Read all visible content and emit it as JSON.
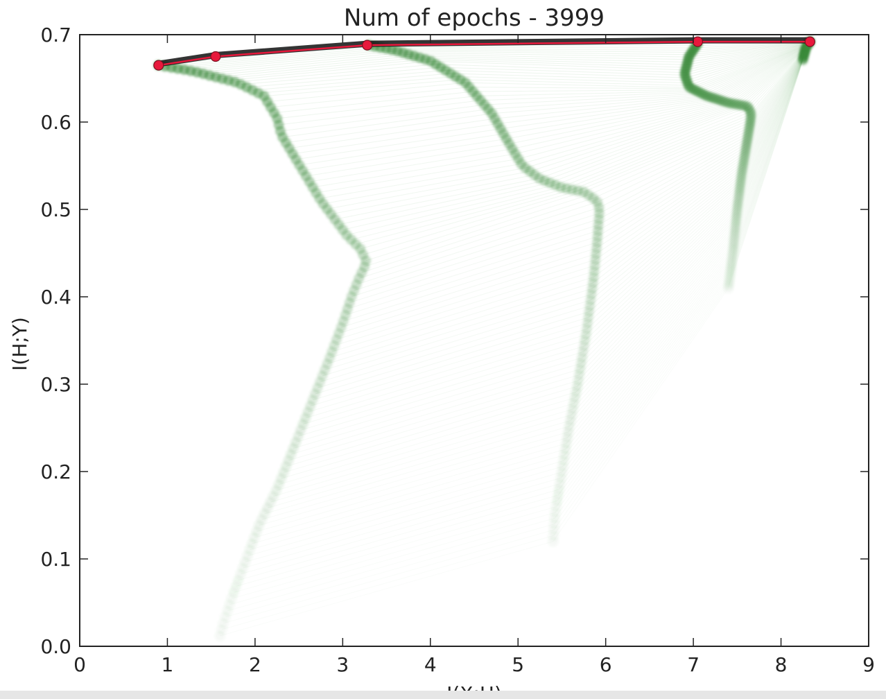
{
  "chart_data": {
    "type": "scatter",
    "title": "Num of epochs - 3999",
    "xlabel": "I(X;H)",
    "ylabel": "I(H;Y)",
    "xlim": [
      0,
      9
    ],
    "ylim": [
      0,
      0.7
    ],
    "xticks": [
      "0",
      "1",
      "2",
      "3",
      "4",
      "5",
      "6",
      "7",
      "8",
      "9"
    ],
    "yticks": [
      "0.0",
      "0.1",
      "0.2",
      "0.3",
      "0.4",
      "0.5",
      "0.6",
      "0.7"
    ],
    "grid": false,
    "colors": {
      "trajectory": "#3a8a3a",
      "fan_line": "#2f8f2f",
      "current_epoch_point": "#e8193c",
      "current_epoch_line": "#e8193c",
      "overlap": "#111111"
    },
    "trajectories": [
      {
        "x": [
          1.6,
          1.65,
          1.75,
          1.9,
          2.05,
          2.25,
          2.45,
          2.65,
          2.85,
          3.0,
          3.1,
          3.18,
          3.25,
          3.27,
          3.2,
          3.05,
          2.9,
          2.75,
          2.6,
          2.45,
          2.3,
          2.25,
          2.1,
          1.8,
          1.3,
          0.9
        ],
        "y": [
          0.012,
          0.03,
          0.06,
          0.1,
          0.14,
          0.18,
          0.23,
          0.28,
          0.33,
          0.37,
          0.4,
          0.42,
          0.435,
          0.44,
          0.455,
          0.47,
          0.49,
          0.51,
          0.535,
          0.56,
          0.585,
          0.605,
          0.63,
          0.645,
          0.658,
          0.665
        ]
      },
      {
        "x": [
          5.4,
          5.42,
          5.5,
          5.58,
          5.68,
          5.78,
          5.86,
          5.9,
          5.93,
          5.9,
          5.75,
          5.5,
          5.25,
          5.05,
          4.9,
          4.7,
          4.4,
          4.0,
          3.6,
          3.3
        ],
        "y": [
          0.12,
          0.15,
          0.2,
          0.25,
          0.3,
          0.36,
          0.42,
          0.46,
          0.5,
          0.51,
          0.52,
          0.525,
          0.535,
          0.55,
          0.575,
          0.61,
          0.645,
          0.67,
          0.682,
          0.688
        ]
      },
      {
        "x": [
          7.4,
          7.45,
          7.5,
          7.55,
          7.6,
          7.65,
          7.66,
          7.62,
          7.4,
          7.15,
          6.95,
          6.9,
          6.95,
          7.05
        ],
        "y": [
          0.41,
          0.45,
          0.5,
          0.54,
          0.57,
          0.6,
          0.61,
          0.618,
          0.622,
          0.63,
          0.64,
          0.655,
          0.675,
          0.69
        ]
      },
      {
        "x": [
          8.25,
          8.25,
          8.26,
          8.27,
          8.28,
          8.3,
          8.33
        ],
        "y": [
          0.67,
          0.672,
          0.676,
          0.68,
          0.684,
          0.688,
          0.692
        ]
      }
    ],
    "current_epoch": {
      "x": [
        0.9,
        1.55,
        3.28,
        7.05,
        8.33
      ],
      "y": [
        0.665,
        0.675,
        0.688,
        0.692,
        0.692
      ]
    }
  }
}
